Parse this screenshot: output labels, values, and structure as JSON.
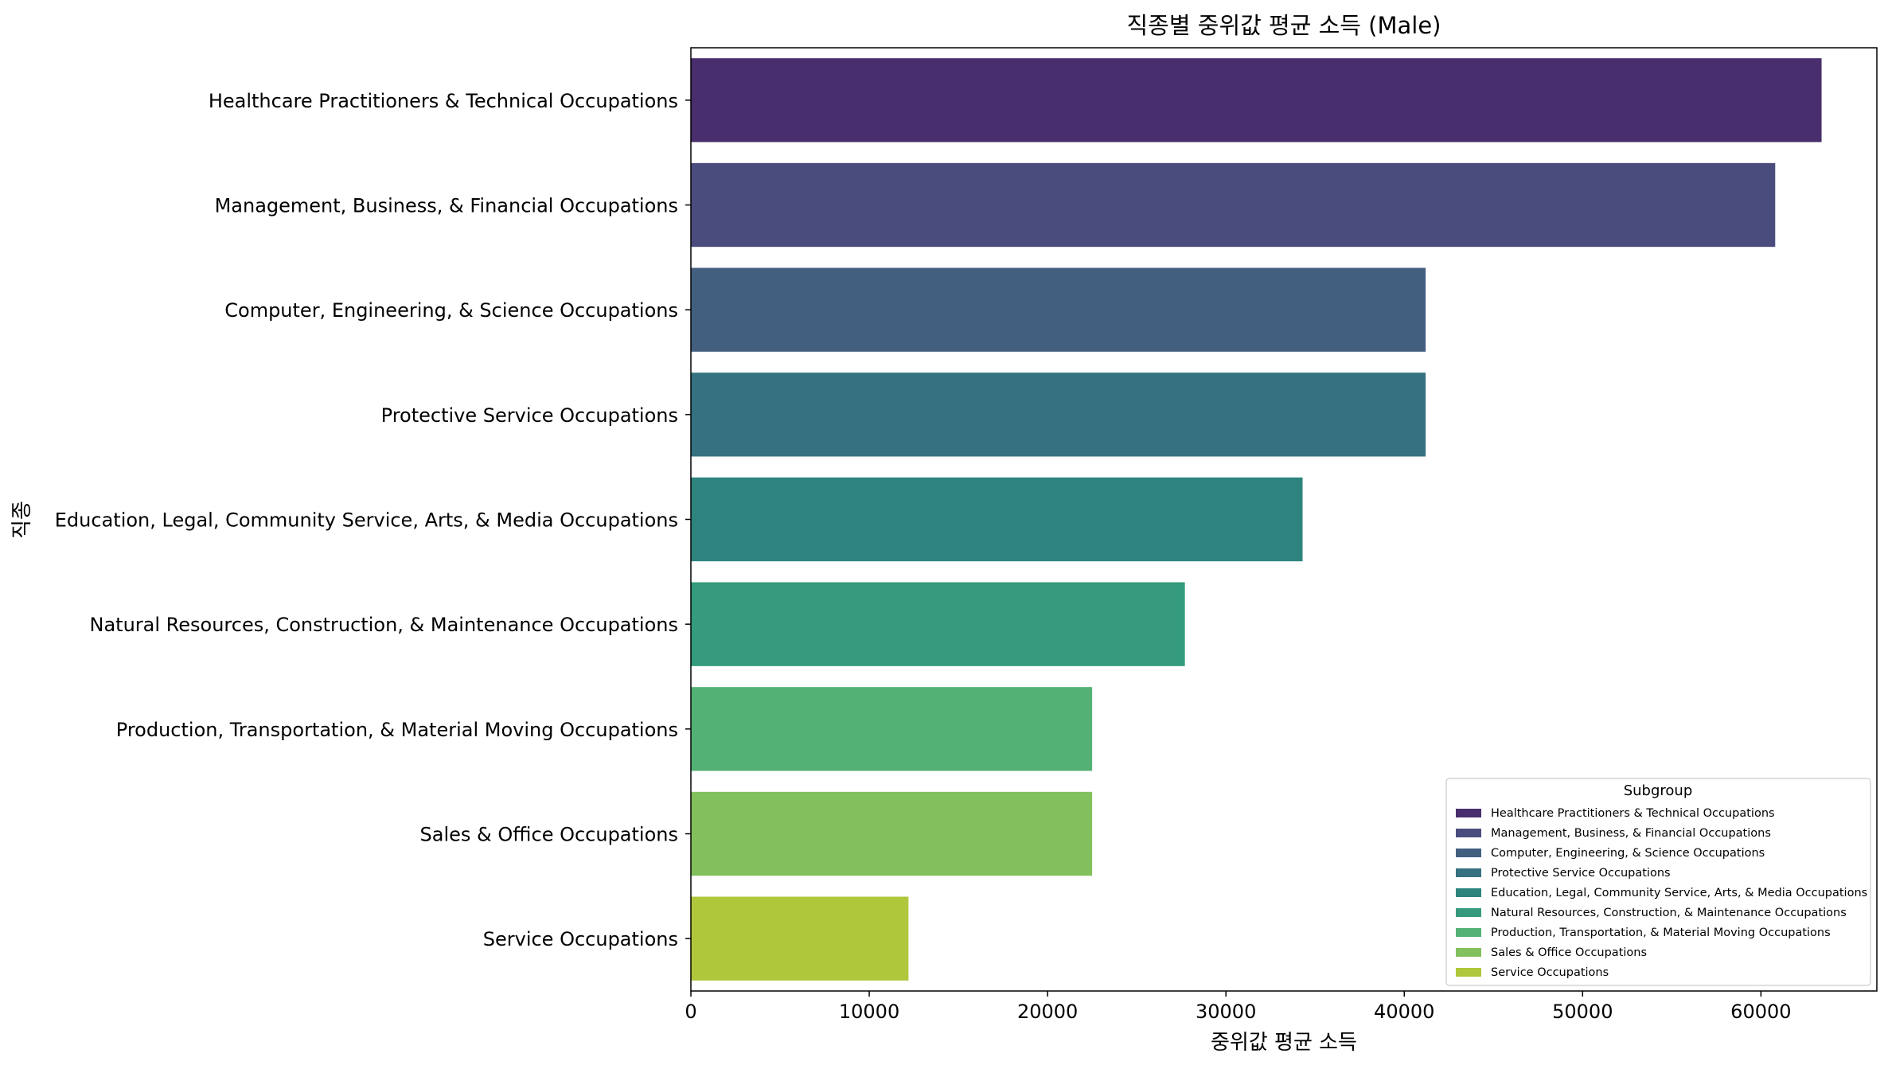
{
  "chart_data": {
    "type": "bar",
    "orientation": "horizontal",
    "title": "직종별 중위값 평균 소득 (Male)",
    "xlabel": "중위값 평균 소득",
    "ylabel": "직종",
    "xlim": [
      0,
      66500
    ],
    "xticks": [
      0,
      10000,
      20000,
      30000,
      40000,
      50000,
      60000
    ],
    "categories": [
      "Healthcare Practitioners & Technical Occupations",
      "Management, Business, & Financial Occupations",
      "Computer, Engineering, & Science Occupations",
      "Protective Service Occupations",
      "Education, Legal, Community Service, Arts, & Media Occupations",
      "Natural Resources, Construction, & Maintenance Occupations",
      "Production, Transportation, & Material Moving Occupations",
      "Sales & Office Occupations",
      "Service Occupations"
    ],
    "values": [
      63400,
      60800,
      41200,
      41200,
      34300,
      27700,
      22500,
      22500,
      12200
    ],
    "colors": [
      "#482e6c",
      "#4b4c7e",
      "#435f80",
      "#357180",
      "#2d847e",
      "#359b7c",
      "#54b175",
      "#81c05d",
      "#afc73b"
    ],
    "legend": {
      "title": "Subgroup",
      "position": "lower-right"
    },
    "grid": false
  }
}
